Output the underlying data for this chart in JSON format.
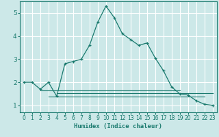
{
  "xlabel": "Humidex (Indice chaleur)",
  "ylabel": "",
  "background_color": "#cce8e8",
  "grid_color": "#ffffff",
  "line_color": "#1a7a6e",
  "xlim": [
    -0.5,
    23.5
  ],
  "ylim": [
    0.7,
    5.5
  ],
  "yticks": [
    1,
    2,
    3,
    4,
    5
  ],
  "xticks": [
    0,
    1,
    2,
    3,
    4,
    5,
    6,
    7,
    8,
    9,
    10,
    11,
    12,
    13,
    14,
    15,
    16,
    17,
    18,
    19,
    20,
    21,
    22,
    23
  ],
  "main_line": {
    "x": [
      0,
      1,
      2,
      3,
      4,
      5,
      6,
      7,
      8,
      9,
      10,
      11,
      12,
      13,
      14,
      15,
      16,
      17,
      18,
      19,
      20,
      21,
      22,
      23
    ],
    "y": [
      2.0,
      2.0,
      1.7,
      2.0,
      1.4,
      2.8,
      2.9,
      3.0,
      3.6,
      4.6,
      5.3,
      4.8,
      4.1,
      3.85,
      3.6,
      3.7,
      3.05,
      2.5,
      1.8,
      1.5,
      1.45,
      1.2,
      1.05,
      1.0
    ]
  },
  "flat_line1": {
    "x": [
      2,
      19
    ],
    "y": [
      1.65,
      1.65
    ]
  },
  "flat_line2": {
    "x": [
      3,
      22
    ],
    "y": [
      1.38,
      1.38
    ]
  },
  "flat_line3": {
    "x": [
      4,
      23
    ],
    "y": [
      1.52,
      1.52
    ]
  }
}
